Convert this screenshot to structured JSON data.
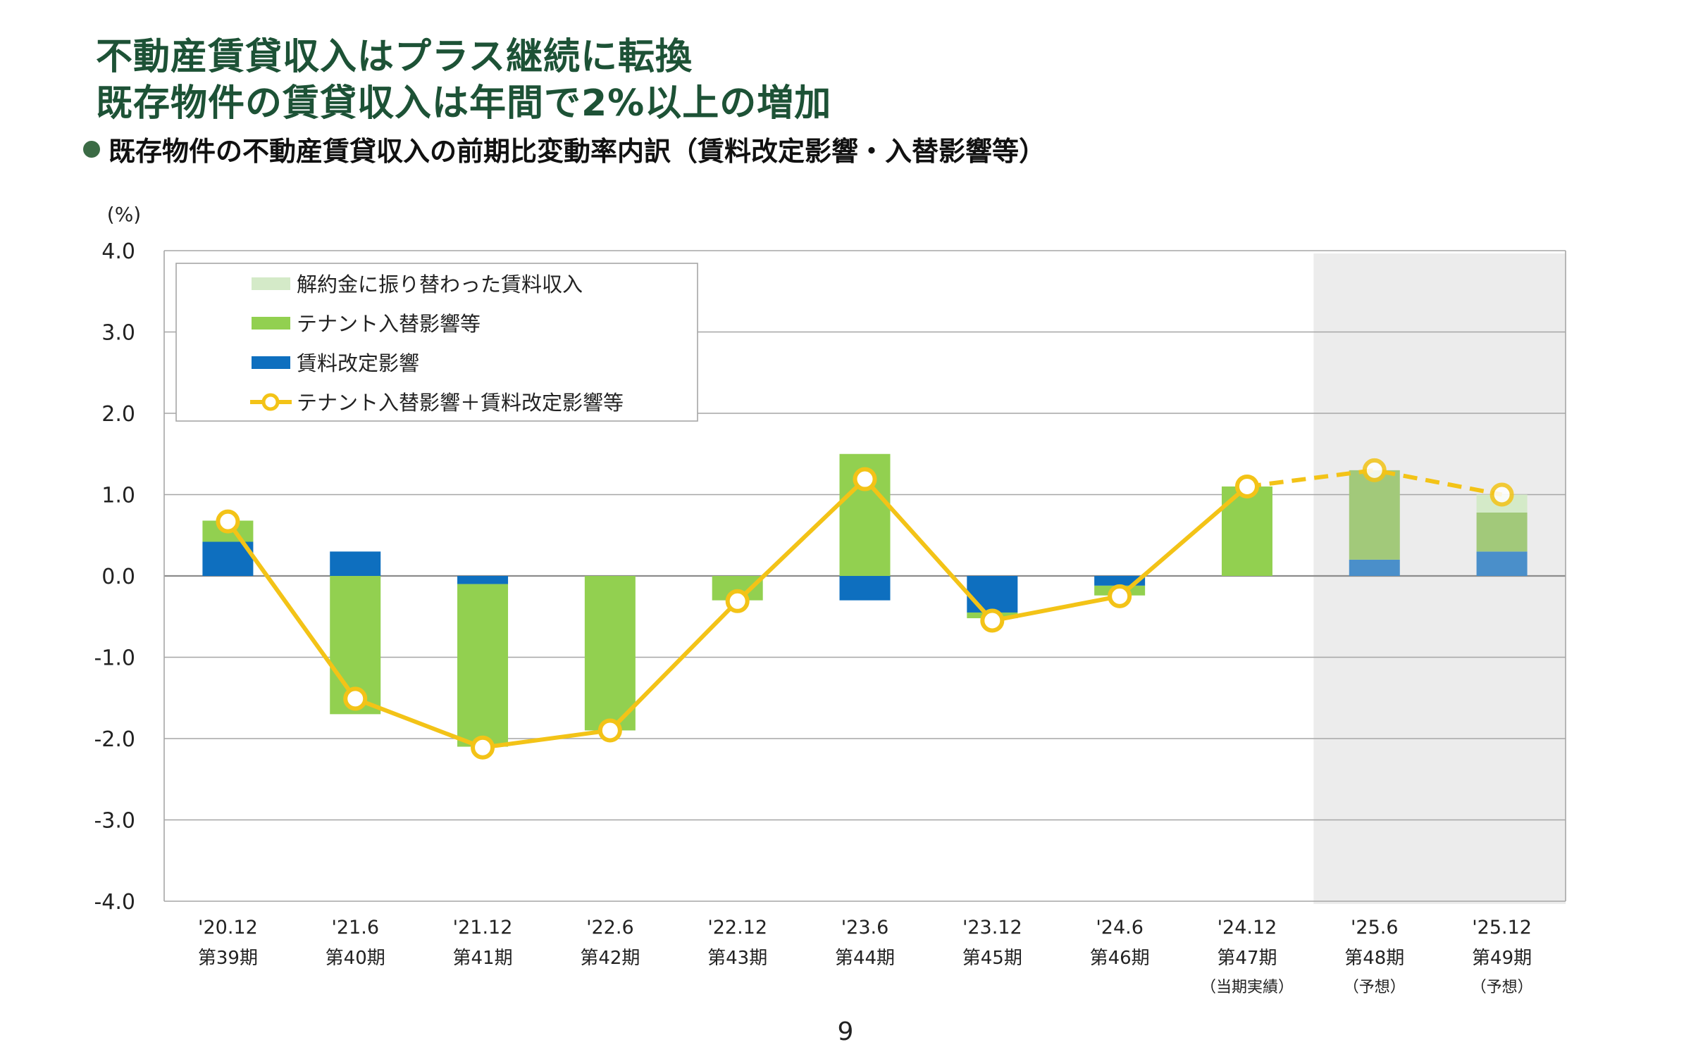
{
  "header": {
    "title_line1": "不動産賃貸収入はプラス継続に転換",
    "title_line2": "既存物件の賃貸収入は年間で2%以上の増加",
    "subtitle": "既存物件の不動産賃貸収入の前期比変動率内訳（賃料改定影響・入替影響等）"
  },
  "chart_data": {
    "type": "bar",
    "stacked": true,
    "yunit": "(%)",
    "ylim": [
      -4.0,
      4.0
    ],
    "yticks": [
      "4.0",
      "3.0",
      "2.0",
      "1.0",
      "0.0",
      "-1.0",
      "-2.0",
      "-3.0",
      "-4.0"
    ],
    "categories": [
      "'20.12",
      "'21.6",
      "'21.12",
      "'22.6",
      "'22.12",
      "'23.6",
      "'23.12",
      "'24.6",
      "'24.12",
      "'25.6",
      "'25.12"
    ],
    "periods": [
      "第39期",
      "第40期",
      "第41期",
      "第42期",
      "第43期",
      "第44期",
      "第45期",
      "第46期",
      "第47期",
      "第48期",
      "第49期"
    ],
    "notes": [
      "",
      "",
      "",
      "",
      "",
      "",
      "",
      "",
      "（当期実績）",
      "（予想）",
      "（予想）"
    ],
    "forecast_start_index": 9,
    "forecast_band_color": "#ececec",
    "grid": true,
    "legend_position": "top-left",
    "series": [
      {
        "name": "賃料改定影響",
        "kind": "bar",
        "color": "#0e6fbf",
        "forecast_color": "#4a8fca",
        "values": [
          0.42,
          0.3,
          -0.1,
          0.0,
          0.0,
          -0.3,
          -0.45,
          -0.12,
          0.0,
          0.2,
          0.3
        ]
      },
      {
        "name": "テナント入替影響等",
        "kind": "bar",
        "color": "#92d050",
        "forecast_color": "#a2c97a",
        "values": [
          0.26,
          -1.7,
          -2.0,
          -1.9,
          -0.3,
          1.5,
          -0.07,
          -0.12,
          1.1,
          1.1,
          0.48
        ]
      },
      {
        "name": "解約金に振り替わった賃料収入",
        "kind": "bar",
        "color": "#d4eac8",
        "values": [
          0,
          0,
          0,
          0,
          0,
          0,
          0,
          0,
          0,
          0,
          0.22
        ]
      },
      {
        "name": "テナント入替影響＋賃料改定影響等",
        "kind": "line",
        "color": "#f3c317",
        "values": [
          0.67,
          -1.51,
          -2.11,
          -1.9,
          -0.31,
          1.19,
          -0.55,
          -0.25,
          1.1,
          1.3,
          1.0
        ]
      }
    ]
  },
  "page_number": "9"
}
